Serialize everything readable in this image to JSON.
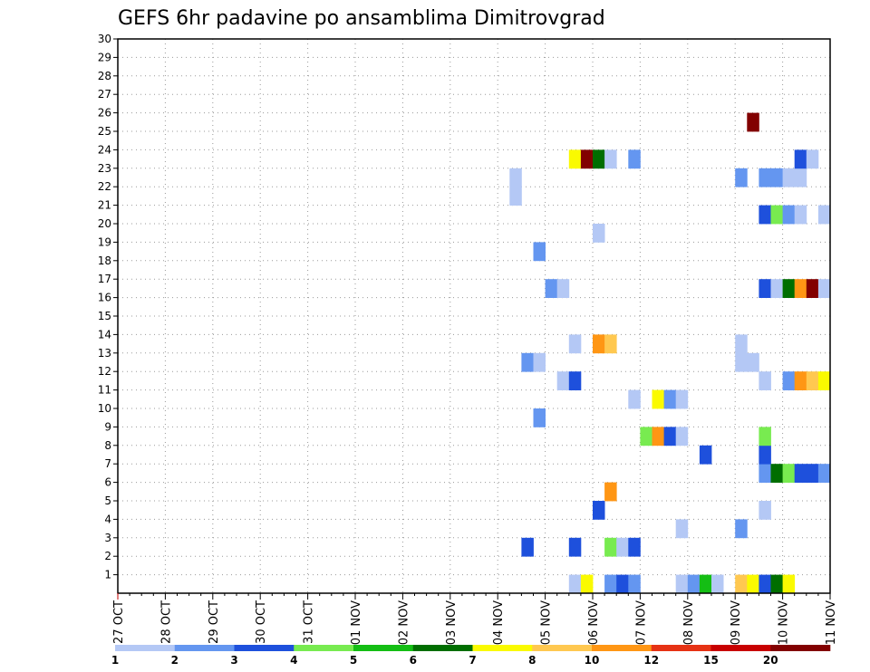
{
  "chart_data": {
    "type": "heatmap",
    "title": "GEFS 6hr padavine po ansamblima Dimitrovgrad",
    "xlabel": "",
    "ylabel": "",
    "x_tick_labels": [
      "27 OCT",
      "28 OCT",
      "29 OCT",
      "30 OCT",
      "31 OCT",
      "01 NOV",
      "02 NOV",
      "03 NOV",
      "04 NOV",
      "05 NOV",
      "06 NOV",
      "07 NOV",
      "08 NOV",
      "09 NOV",
      "10 NOV",
      "11 NOV"
    ],
    "y_tick_labels": [
      "1",
      "2",
      "3",
      "4",
      "5",
      "6",
      "7",
      "8",
      "9",
      "10",
      "11",
      "12",
      "13",
      "14",
      "15",
      "16",
      "17",
      "18",
      "19",
      "20",
      "21",
      "22",
      "23",
      "24",
      "25",
      "26",
      "27",
      "28",
      "29",
      "30"
    ],
    "x_range_steps": [
      0,
      60
    ],
    "y_range": [
      0,
      30
    ],
    "grid": true,
    "legend": {
      "placement": "bottom",
      "labels": [
        "1",
        "2",
        "3",
        "4",
        "5",
        "6",
        "7",
        "8",
        "10",
        "12",
        "15",
        "20"
      ],
      "colors": [
        "#b4c8f5",
        "#6496f0",
        "#1e50dc",
        "#78eb50",
        "#14be14",
        "#006e00",
        "#fafa00",
        "#ffc850",
        "#ff9614",
        "#e63214",
        "#c80000",
        "#820000"
      ]
    },
    "level_bounds": [
      1,
      2,
      3,
      4,
      5,
      6,
      7,
      8,
      10,
      12,
      15,
      20
    ],
    "cells": [
      [
        38,
        0,
        0
      ],
      [
        39,
        0,
        6
      ],
      [
        41,
        0,
        1
      ],
      [
        42,
        0,
        2
      ],
      [
        43,
        0,
        1
      ],
      [
        47,
        0,
        0
      ],
      [
        48,
        0,
        1
      ],
      [
        49,
        0,
        4
      ],
      [
        50,
        0,
        0
      ],
      [
        52,
        0,
        7
      ],
      [
        53,
        0,
        6
      ],
      [
        54,
        0,
        2
      ],
      [
        55,
        0,
        5
      ],
      [
        56,
        0,
        6
      ],
      [
        34,
        2,
        2
      ],
      [
        38,
        2,
        2
      ],
      [
        41,
        2,
        3
      ],
      [
        42,
        2,
        0
      ],
      [
        43,
        2,
        2
      ],
      [
        47,
        3,
        0
      ],
      [
        52,
        3,
        1
      ],
      [
        40,
        4,
        2
      ],
      [
        54,
        4,
        0
      ],
      [
        41,
        5,
        8
      ],
      [
        54,
        6,
        1
      ],
      [
        55,
        6,
        5
      ],
      [
        56,
        6,
        3
      ],
      [
        57,
        6,
        2
      ],
      [
        58,
        6,
        2
      ],
      [
        59,
        6,
        1
      ],
      [
        49,
        7,
        2
      ],
      [
        54,
        7,
        2
      ],
      [
        44,
        8,
        3
      ],
      [
        45,
        8,
        8
      ],
      [
        46,
        8,
        2
      ],
      [
        47,
        8,
        0
      ],
      [
        54,
        8,
        3
      ],
      [
        35,
        9,
        1
      ],
      [
        43,
        10,
        0
      ],
      [
        45,
        10,
        6
      ],
      [
        46,
        10,
        1
      ],
      [
        47,
        10,
        0
      ],
      [
        37,
        11,
        0
      ],
      [
        38,
        11,
        2
      ],
      [
        54,
        11,
        0
      ],
      [
        56,
        11,
        1
      ],
      [
        57,
        11,
        8
      ],
      [
        58,
        11,
        7
      ],
      [
        59,
        11,
        6
      ],
      [
        34,
        12,
        1
      ],
      [
        35,
        12,
        0
      ],
      [
        52,
        12,
        0
      ],
      [
        53,
        12,
        0
      ],
      [
        38,
        13,
        0
      ],
      [
        40,
        13,
        8
      ],
      [
        41,
        13,
        7
      ],
      [
        52,
        13,
        0
      ],
      [
        36,
        16,
        1
      ],
      [
        37,
        16,
        0
      ],
      [
        54,
        16,
        2
      ],
      [
        55,
        16,
        0
      ],
      [
        56,
        16,
        5
      ],
      [
        57,
        16,
        8
      ],
      [
        58,
        16,
        11
      ],
      [
        59,
        16,
        0
      ],
      [
        35,
        18,
        1
      ],
      [
        40,
        19,
        0
      ],
      [
        54,
        20,
        2
      ],
      [
        55,
        20,
        3
      ],
      [
        56,
        20,
        1
      ],
      [
        57,
        20,
        0
      ],
      [
        59,
        20,
        0
      ],
      [
        33,
        21,
        0
      ],
      [
        33,
        22,
        0
      ],
      [
        52,
        22,
        1
      ],
      [
        54,
        22,
        1
      ],
      [
        55,
        22,
        1
      ],
      [
        56,
        22,
        0
      ],
      [
        57,
        22,
        0
      ],
      [
        38,
        23,
        6
      ],
      [
        39,
        23,
        11
      ],
      [
        40,
        23,
        5
      ],
      [
        41,
        23,
        0
      ],
      [
        43,
        23,
        1
      ],
      [
        57,
        23,
        2
      ],
      [
        58,
        23,
        0
      ],
      [
        53,
        25,
        11
      ]
    ]
  }
}
